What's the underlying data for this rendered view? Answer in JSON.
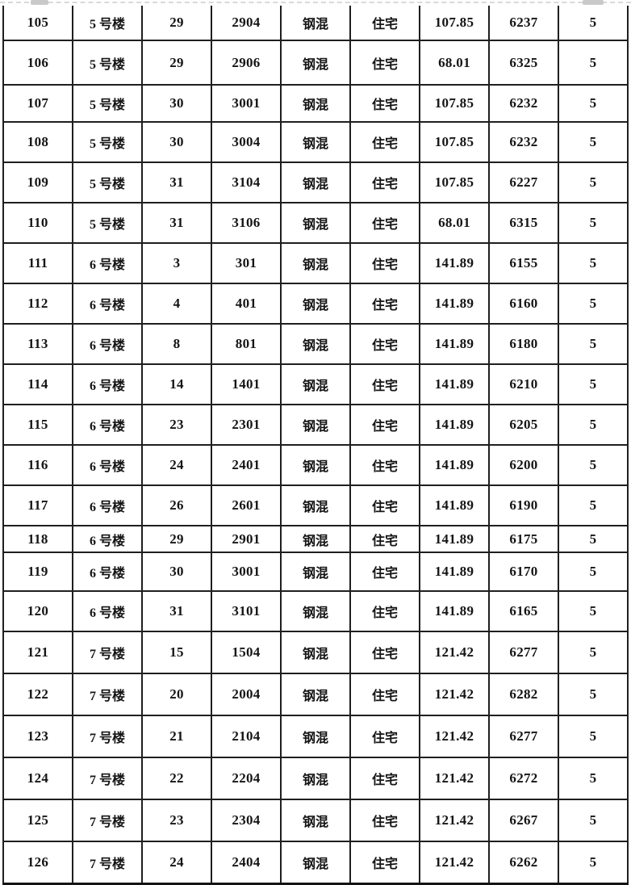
{
  "table": {
    "rows": [
      [
        "105",
        "5 号楼",
        "29",
        "2904",
        "钢混",
        "住宅",
        "107.85",
        "6237",
        "5"
      ],
      [
        "106",
        "5 号楼",
        "29",
        "2906",
        "钢混",
        "住宅",
        "68.01",
        "6325",
        "5"
      ],
      [
        "107",
        "5 号楼",
        "30",
        "3001",
        "钢混",
        "住宅",
        "107.85",
        "6232",
        "5"
      ],
      [
        "108",
        "5 号楼",
        "30",
        "3004",
        "钢混",
        "住宅",
        "107.85",
        "6232",
        "5"
      ],
      [
        "109",
        "5 号楼",
        "31",
        "3104",
        "钢混",
        "住宅",
        "107.85",
        "6227",
        "5"
      ],
      [
        "110",
        "5 号楼",
        "31",
        "3106",
        "钢混",
        "住宅",
        "68.01",
        "6315",
        "5"
      ],
      [
        "111",
        "6 号楼",
        "3",
        "301",
        "钢混",
        "住宅",
        "141.89",
        "6155",
        "5"
      ],
      [
        "112",
        "6 号楼",
        "4",
        "401",
        "钢混",
        "住宅",
        "141.89",
        "6160",
        "5"
      ],
      [
        "113",
        "6 号楼",
        "8",
        "801",
        "钢混",
        "住宅",
        "141.89",
        "6180",
        "5"
      ],
      [
        "114",
        "6 号楼",
        "14",
        "1401",
        "钢混",
        "住宅",
        "141.89",
        "6210",
        "5"
      ],
      [
        "115",
        "6 号楼",
        "23",
        "2301",
        "钢混",
        "住宅",
        "141.89",
        "6205",
        "5"
      ],
      [
        "116",
        "6 号楼",
        "24",
        "2401",
        "钢混",
        "住宅",
        "141.89",
        "6200",
        "5"
      ],
      [
        "117",
        "6 号楼",
        "26",
        "2601",
        "钢混",
        "住宅",
        "141.89",
        "6190",
        "5"
      ],
      [
        "118",
        "6 号楼",
        "29",
        "2901",
        "钢混",
        "住宅",
        "141.89",
        "6175",
        "5"
      ],
      [
        "119",
        "6 号楼",
        "30",
        "3001",
        "钢混",
        "住宅",
        "141.89",
        "6170",
        "5"
      ],
      [
        "120",
        "6 号楼",
        "31",
        "3101",
        "钢混",
        "住宅",
        "141.89",
        "6165",
        "5"
      ],
      [
        "121",
        "7 号楼",
        "15",
        "1504",
        "钢混",
        "住宅",
        "121.42",
        "6277",
        "5"
      ],
      [
        "122",
        "7 号楼",
        "20",
        "2004",
        "钢混",
        "住宅",
        "121.42",
        "6282",
        "5"
      ],
      [
        "123",
        "7 号楼",
        "21",
        "2104",
        "钢混",
        "住宅",
        "121.42",
        "6277",
        "5"
      ],
      [
        "124",
        "7 号楼",
        "22",
        "2204",
        "钢混",
        "住宅",
        "121.42",
        "6272",
        "5"
      ],
      [
        "125",
        "7 号楼",
        "23",
        "2304",
        "钢混",
        "住宅",
        "121.42",
        "6267",
        "5"
      ],
      [
        "126",
        "7 号楼",
        "24",
        "2404",
        "钢混",
        "住宅",
        "121.42",
        "6262",
        "5"
      ]
    ]
  },
  "colors": {
    "table_border": "#1f1f1f",
    "cell_text": "#151515",
    "edge_line": "#d9d9d9",
    "edge_tab": "#c9c9c9",
    "page_background": "#ffffff"
  }
}
